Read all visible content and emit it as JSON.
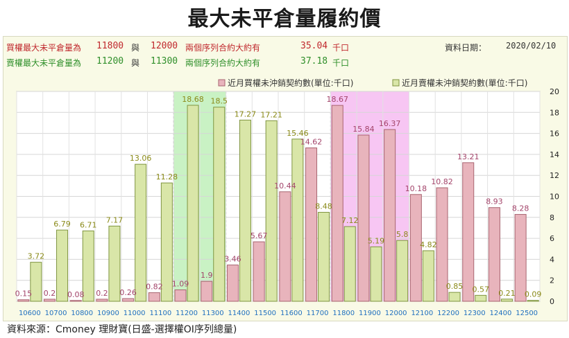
{
  "title": "最大未平倉量履約價",
  "info": {
    "call_label": "買權最大未平倉量為",
    "call_strike1": "11800",
    "connector": "與",
    "call_strike2": "12000",
    "mid_text": "兩個序列合約大約有",
    "call_amount": "35.04",
    "unit": "千口",
    "put_label": "賣權最大未平倉量為",
    "put_strike1": "11200",
    "put_strike2": "11300",
    "put_amount": "37.18",
    "date_label": "資料日期：",
    "date_value": "2020/02/10"
  },
  "colors": {
    "call_fill": "#e8b4bc",
    "call_stroke": "#a86470",
    "put_fill": "#d9e6a8",
    "put_stroke": "#7f9440",
    "call_label": "#a3446a",
    "put_label": "#8a8a18",
    "tick_label": "#1f6fbf",
    "highlight_put": "#c9f2c4",
    "highlight_call": "#f7c6f3"
  },
  "chart_data": {
    "type": "bar",
    "categories": [
      "10600",
      "10700",
      "10800",
      "10900",
      "11000",
      "11100",
      "11200",
      "11300",
      "11400",
      "11500",
      "11600",
      "11700",
      "11800",
      "11900",
      "12000",
      "12100",
      "12200",
      "12300",
      "12400",
      "12500"
    ],
    "series": [
      {
        "name": "近月買權未沖銷契約數(單位:千口)",
        "values": [
          0.15,
          0.2,
          0.08,
          0.2,
          0.26,
          0.82,
          1.09,
          1.9,
          3.46,
          5.67,
          10.44,
          14.62,
          18.67,
          15.84,
          16.37,
          10.18,
          10.82,
          13.21,
          8.93,
          8.28
        ]
      },
      {
        "name": "近月賣權未沖銷契約數(單位:千口)",
        "values": [
          3.72,
          6.79,
          6.71,
          7.17,
          13.06,
          11.28,
          18.68,
          18.5,
          17.27,
          17.21,
          15.46,
          8.48,
          7.12,
          5.19,
          5.8,
          4.82,
          0.85,
          0.57,
          0.21,
          0.09
        ]
      }
    ],
    "call_labels": [
      "0.15",
      "0.2",
      "0.08",
      "0.2",
      "0.26",
      "0.82",
      "1.09",
      "1.9",
      "3.46",
      "5.67",
      "10.44",
      "14.62",
      "18.67",
      "15.84",
      "16.37",
      "10.18",
      "10.82",
      "13.21",
      "8.93",
      "8.28"
    ],
    "put_labels": [
      "3.72",
      "6.79",
      "6.71",
      "7.17",
      "13.06",
      "11.28",
      "18.68",
      "18.5",
      "17.27",
      "17.21",
      "15.46",
      "8.48",
      "7.12",
      "5.19",
      "5.8",
      "4.82",
      "0.85",
      "0.57",
      "0.21",
      "0.09"
    ],
    "highlight_put_categories": [
      "11200",
      "11300"
    ],
    "highlight_call_categories": [
      "11800",
      "12000"
    ],
    "ylim": [
      0,
      20
    ],
    "yticks": [
      "0",
      "2",
      "4",
      "6",
      "8",
      "10",
      "12",
      "14",
      "16",
      "18",
      "20"
    ],
    "y_axis_side": "right",
    "grid": true,
    "legend": "top-right"
  },
  "source": "資料來源：Cmoney 理財寶(日盛-選擇權OI序列總量)"
}
